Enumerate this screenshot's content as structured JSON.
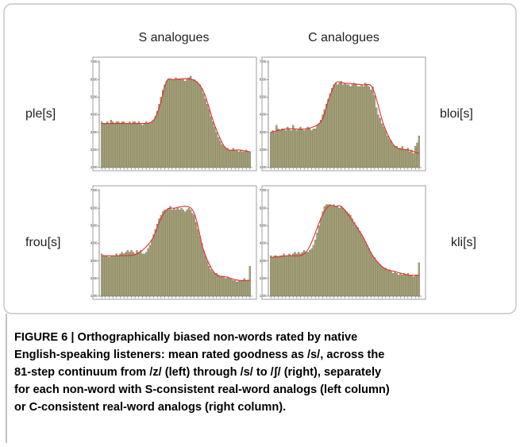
{
  "column_titles": [
    "S analogues",
    "C analogues"
  ],
  "row_labels": [
    "ple[s]",
    "bloi[s]",
    "frou[s]",
    "kli[s]"
  ],
  "caption_lines": [
    "FIGURE 6 | Orthographically biased non-words rated by native",
    "English-speaking listeners: mean rated goodness as /s/, across the",
    "81-step continuum from /z/ (left) through /s/ to /ʃ/ (right), separately",
    "for each non-word with S-consistent real-word analogs (left column)",
    "or C-consistent real-word analogs (right column)."
  ],
  "chart_data": [
    {
      "type": "bar",
      "color": "#aaa67c",
      "fit_color": "#e03030",
      "ylim": [
        1,
        7
      ],
      "yticks": [
        {
          "value": 1,
          "label": "1.00"
        },
        {
          "value": 2,
          "label": "2.00"
        },
        {
          "value": 3,
          "label": "3.00"
        },
        {
          "value": 4,
          "label": "4.00"
        },
        {
          "value": 5,
          "label": "5.00"
        },
        {
          "value": 6,
          "label": "6.00"
        },
        {
          "value": 7,
          "label": "7.00"
        }
      ],
      "values": [
        3.6,
        3.5,
        3.5,
        3.6,
        3.5,
        3.7,
        3.6,
        3.5,
        3.6,
        3.6,
        3.5,
        3.6,
        3.6,
        3.5,
        3.5,
        3.6,
        3.5,
        3.6,
        3.6,
        3.5,
        3.6,
        3.5,
        3.4,
        3.5,
        3.6,
        3.5,
        3.5,
        3.6,
        3.7,
        3.9,
        4.2,
        4.6,
        5.0,
        5.4,
        5.7,
        5.9,
        6.0,
        6.0,
        6.0,
        6.0,
        6.1,
        6.0,
        6.0,
        6.0,
        6.0,
        5.9,
        6.0,
        6.1,
        6.2,
        6.0,
        6.0,
        5.9,
        5.8,
        5.7,
        5.5,
        5.2,
        4.9,
        4.6,
        4.3,
        3.9,
        3.6,
        3.3,
        3.0,
        2.7,
        2.5,
        2.3,
        2.2,
        2.1,
        2.1,
        2.0,
        2.0,
        2.1,
        2.0,
        2.0,
        1.9,
        2.0,
        1.9,
        1.9,
        2.0,
        1.9,
        1.9
      ],
      "fit": {
        "x": [
          1,
          10,
          20,
          28,
          32,
          36,
          40,
          50,
          56,
          62,
          68,
          75,
          81
        ],
        "values": [
          3.5,
          3.5,
          3.5,
          3.6,
          4.4,
          5.9,
          6.0,
          6.0,
          5.3,
          3.4,
          2.1,
          2.0,
          1.9
        ]
      }
    },
    {
      "type": "bar",
      "color": "#aaa67c",
      "fit_color": "#e03030",
      "ylim": [
        1,
        7
      ],
      "yticks": [
        {
          "value": 1,
          "label": "1.00"
        },
        {
          "value": 2,
          "label": "2.00"
        },
        {
          "value": 3,
          "label": "3.00"
        },
        {
          "value": 4,
          "label": "4.00"
        },
        {
          "value": 5,
          "label": "5.00"
        },
        {
          "value": 6,
          "label": "6.00"
        },
        {
          "value": 7,
          "label": "7.00"
        }
      ],
      "values": [
        3.0,
        3.1,
        3.0,
        3.4,
        3.2,
        3.1,
        3.2,
        3.2,
        3.1,
        3.3,
        3.2,
        3.1,
        3.4,
        3.2,
        3.1,
        3.2,
        3.3,
        3.2,
        3.1,
        3.2,
        3.3,
        3.2,
        3.1,
        3.2,
        3.2,
        3.4,
        3.5,
        3.7,
        4.0,
        4.3,
        4.6,
        4.9,
        5.2,
        5.5,
        5.7,
        5.8,
        5.7,
        5.8,
        5.9,
        5.7,
        5.8,
        5.7,
        5.7,
        5.6,
        5.7,
        5.8,
        5.7,
        5.6,
        5.6,
        5.7,
        5.6,
        5.8,
        5.7,
        5.6,
        5.4,
        5.6,
        5.1,
        4.4,
        4.0,
        3.8,
        3.5,
        3.3,
        3.1,
        2.8,
        2.6,
        2.5,
        2.3,
        2.2,
        2.2,
        2.1,
        2.1,
        2.2,
        2.0,
        2.0,
        2.1,
        1.9,
        2.0,
        1.8,
        2.2,
        2.4,
        2.8
      ],
      "fit": {
        "x": [
          1,
          10,
          20,
          28,
          32,
          36,
          40,
          50,
          56,
          62,
          68,
          75,
          81
        ],
        "values": [
          3.0,
          3.2,
          3.2,
          3.6,
          4.8,
          5.8,
          5.8,
          5.7,
          5.5,
          3.4,
          2.2,
          2.0,
          1.8
        ]
      }
    },
    {
      "type": "bar",
      "color": "#aaa67c",
      "fit_color": "#e03030",
      "ylim": [
        1,
        7
      ],
      "yticks": [
        {
          "value": 1,
          "label": "1.00"
        },
        {
          "value": 2,
          "label": "2.00"
        },
        {
          "value": 3,
          "label": "3.00"
        },
        {
          "value": 4,
          "label": "4.00"
        },
        {
          "value": 5,
          "label": "5.00"
        },
        {
          "value": 6,
          "label": "6.00"
        },
        {
          "value": 7,
          "label": "7.00"
        }
      ],
      "values": [
        3.4,
        3.3,
        3.3,
        3.3,
        3.2,
        3.3,
        3.3,
        3.3,
        3.4,
        3.3,
        3.4,
        3.5,
        3.4,
        3.5,
        3.6,
        3.5,
        3.6,
        3.5,
        3.4,
        3.6,
        3.5,
        3.6,
        3.4,
        3.4,
        3.5,
        3.7,
        3.9,
        4.2,
        4.5,
        4.8,
        5.1,
        5.4,
        5.6,
        5.8,
        5.9,
        5.9,
        6.0,
        6.1,
        5.9,
        6.0,
        5.9,
        6.0,
        5.9,
        6.0,
        5.9,
        5.8,
        5.9,
        6.0,
        5.9,
        5.7,
        5.6,
        5.2,
        4.8,
        4.4,
        4.0,
        3.6,
        3.3,
        3.0,
        2.7,
        2.5,
        2.4,
        2.3,
        2.3,
        2.2,
        2.1,
        2.1,
        2.1,
        2.0,
        2.1,
        2.0,
        2.0,
        1.9,
        1.9,
        1.8,
        1.9,
        1.9,
        1.9,
        2.0,
        1.9,
        1.9,
        2.7
      ],
      "fit": {
        "x": [
          1,
          10,
          20,
          28,
          32,
          36,
          40,
          50,
          56,
          62,
          68,
          75,
          81
        ],
        "values": [
          3.3,
          3.3,
          3.4,
          4.2,
          5.2,
          5.9,
          6.0,
          5.9,
          3.6,
          2.3,
          2.1,
          1.9,
          1.9
        ]
      }
    },
    {
      "type": "bar",
      "color": "#aaa67c",
      "fit_color": "#e03030",
      "ylim": [
        1,
        7
      ],
      "yticks": [
        {
          "value": 1,
          "label": "1.00"
        },
        {
          "value": 2,
          "label": "2.00"
        },
        {
          "value": 3,
          "label": "3.00"
        },
        {
          "value": 4,
          "label": "4.00"
        },
        {
          "value": 5,
          "label": "5.00"
        },
        {
          "value": 6,
          "label": "6.00"
        },
        {
          "value": 7,
          "label": "7.00"
        }
      ],
      "values": [
        3.3,
        3.2,
        3.3,
        3.3,
        3.2,
        3.3,
        3.3,
        3.4,
        3.3,
        3.3,
        3.4,
        3.3,
        3.4,
        3.5,
        3.4,
        3.5,
        3.4,
        3.5,
        3.6,
        3.5,
        3.5,
        3.6,
        3.7,
        3.9,
        4.2,
        4.6,
        5.0,
        5.4,
        5.8,
        6.1,
        6.2,
        6.2,
        6.2,
        6.1,
        6.2,
        6.1,
        6.1,
        6.0,
        6.1,
        6.0,
        5.9,
        5.8,
        5.7,
        5.6,
        5.4,
        5.2,
        5.0,
        4.9,
        4.7,
        4.5,
        4.3,
        4.1,
        3.9,
        3.7,
        3.5,
        3.3,
        3.2,
        3.0,
        2.9,
        2.8,
        2.7,
        2.6,
        2.6,
        2.5,
        2.5,
        2.4,
        2.3,
        2.4,
        2.3,
        2.2,
        2.3,
        2.2,
        2.3,
        2.2,
        2.3,
        2.2,
        2.2,
        2.1,
        2.2,
        2.2,
        2.9
      ],
      "fit": {
        "x": [
          1,
          10,
          20,
          28,
          32,
          36,
          40,
          50,
          56,
          62,
          68,
          75,
          81
        ],
        "values": [
          3.2,
          3.3,
          3.5,
          5.4,
          6.1,
          6.1,
          6.0,
          4.5,
          3.3,
          2.6,
          2.4,
          2.2,
          2.2
        ]
      }
    }
  ]
}
